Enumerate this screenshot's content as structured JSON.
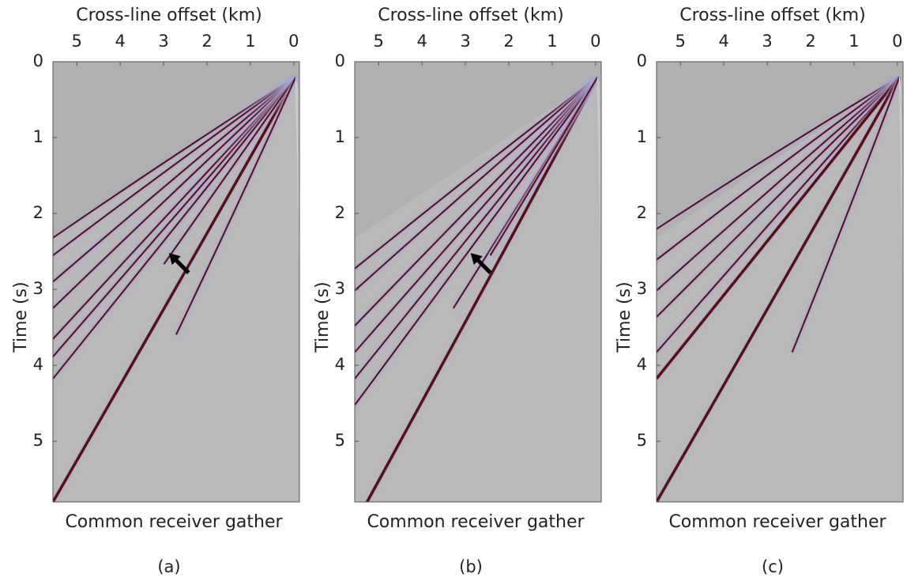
{
  "panels": [
    {
      "title": "Cross-line offset (km)",
      "y_label": "Time (s)",
      "x_label": "Common receiver gather",
      "caption": "(a)",
      "xlim": [
        5.55,
        -0.13
      ],
      "xticks": [
        5,
        4,
        3,
        2,
        1,
        0
      ],
      "ylim": [
        0,
        5.8
      ],
      "yticks": [
        0,
        1,
        2,
        3,
        4,
        5
      ]
    },
    {
      "title": "Cross-line offset (km)",
      "y_label": "Time (s)",
      "x_label": "Common receiver gather",
      "caption": "(b)",
      "xlim": [
        5.55,
        -0.13
      ],
      "xticks": [
        5,
        4,
        3,
        2,
        1,
        0
      ],
      "ylim": [
        0,
        5.8
      ],
      "yticks": [
        0,
        1,
        2,
        3,
        4,
        5
      ]
    },
    {
      "title": "Cross-line offset (km)",
      "y_label": "Time (s)",
      "x_label": "Common receiver gather",
      "caption": "(c)",
      "xlim": [
        5.55,
        -0.13
      ],
      "xticks": [
        5,
        4,
        3,
        2,
        1,
        0
      ],
      "ylim": [
        0,
        5.8
      ],
      "yticks": [
        0,
        1,
        2,
        3,
        4,
        5
      ]
    }
  ]
}
